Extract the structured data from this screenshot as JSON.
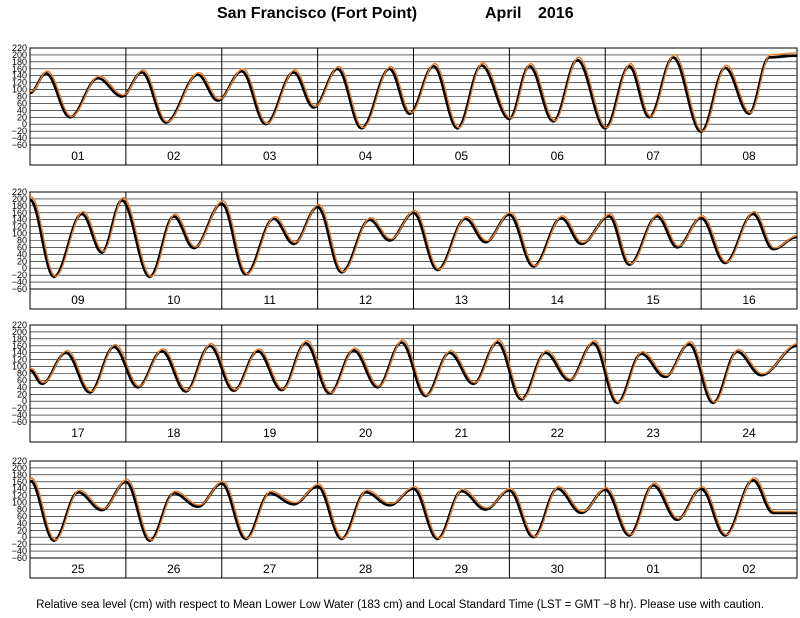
{
  "title": {
    "place": "San Francisco (Fort Point)",
    "month": "April",
    "year": "2016"
  },
  "caption": "Relative sea level (cm) with respect to Mean Lower Low Water (183 cm) and Local Standard Time (LST = GMT −8 hr). Please use with caution.",
  "colors": {
    "observed": "#000000",
    "predicted": "#e87d28",
    "grid": "#000000"
  },
  "chart_data": {
    "type": "line",
    "ylim": [
      -60,
      220
    ],
    "yticks": [
      -60,
      -40,
      -20,
      0,
      20,
      40,
      60,
      80,
      100,
      120,
      140,
      160,
      180,
      200,
      220
    ],
    "grid": true,
    "series": [
      {
        "style": "thick",
        "color": "#000000"
      },
      {
        "style": "thin",
        "color": "#e87d28"
      }
    ],
    "panels": [
      {
        "days": [
          "01",
          "02",
          "03",
          "04",
          "05",
          "06",
          "07",
          "08"
        ]
      },
      {
        "days": [
          "09",
          "10",
          "11",
          "12",
          "13",
          "14",
          "15",
          "16"
        ]
      },
      {
        "days": [
          "17",
          "18",
          "19",
          "20",
          "21",
          "22",
          "23",
          "24"
        ]
      },
      {
        "days": [
          "25",
          "26",
          "27",
          "28",
          "29",
          "30",
          "01",
          "02"
        ]
      }
    ],
    "extrema": [
      [
        0,
        90
      ],
      [
        4,
        147
      ],
      [
        10,
        20
      ],
      [
        17,
        133
      ],
      [
        23,
        80
      ],
      [
        28,
        150
      ],
      [
        34,
        5
      ],
      [
        42,
        143
      ],
      [
        47,
        68
      ],
      [
        53,
        153
      ],
      [
        59,
        0
      ],
      [
        66,
        150
      ],
      [
        71,
        48
      ],
      [
        77,
        160
      ],
      [
        83,
        -12
      ],
      [
        90,
        160
      ],
      [
        95,
        30
      ],
      [
        101,
        168
      ],
      [
        107,
        -12
      ],
      [
        113,
        170
      ],
      [
        120,
        15
      ],
      [
        125,
        168
      ],
      [
        131,
        8
      ],
      [
        137,
        186
      ],
      [
        144,
        -12
      ],
      [
        150,
        168
      ],
      [
        155,
        20
      ],
      [
        161,
        193
      ],
      [
        168,
        -22
      ],
      [
        174,
        163
      ],
      [
        180,
        30
      ],
      [
        185,
        193
      ],
      [
        192,
        198
      ],
      [
        198,
        -25
      ],
      [
        205,
        157
      ],
      [
        210,
        45
      ],
      [
        215,
        196
      ],
      [
        222,
        -25
      ],
      [
        228,
        150
      ],
      [
        233,
        58
      ],
      [
        240,
        187
      ],
      [
        246,
        -18
      ],
      [
        253,
        143
      ],
      [
        258,
        70
      ],
      [
        264,
        177
      ],
      [
        270,
        -12
      ],
      [
        277,
        140
      ],
      [
        282,
        80
      ],
      [
        288,
        160
      ],
      [
        294,
        -5
      ],
      [
        301,
        143
      ],
      [
        306,
        75
      ],
      [
        312,
        155
      ],
      [
        318,
        5
      ],
      [
        325,
        145
      ],
      [
        330,
        70
      ],
      [
        337,
        150
      ],
      [
        342,
        10
      ],
      [
        349,
        150
      ],
      [
        354,
        60
      ],
      [
        360,
        145
      ],
      [
        366,
        15
      ],
      [
        373,
        157
      ],
      [
        378,
        55
      ],
      [
        384,
        90
      ],
      [
        384,
        90
      ],
      [
        387,
        50
      ],
      [
        393,
        140
      ],
      [
        399,
        25
      ],
      [
        405,
        157
      ],
      [
        411,
        40
      ],
      [
        417,
        145
      ],
      [
        423,
        28
      ],
      [
        429,
        160
      ],
      [
        435,
        30
      ],
      [
        441,
        145
      ],
      [
        447,
        32
      ],
      [
        453,
        168
      ],
      [
        459,
        22
      ],
      [
        465,
        147
      ],
      [
        471,
        40
      ],
      [
        477,
        170
      ],
      [
        483,
        15
      ],
      [
        489,
        140
      ],
      [
        495,
        50
      ],
      [
        501,
        170
      ],
      [
        507,
        5
      ],
      [
        513,
        140
      ],
      [
        519,
        60
      ],
      [
        525,
        168
      ],
      [
        531,
        -5
      ],
      [
        537,
        137
      ],
      [
        543,
        70
      ],
      [
        549,
        165
      ],
      [
        555,
        -5
      ],
      [
        561,
        143
      ],
      [
        567,
        75
      ],
      [
        576,
        160
      ],
      [
        576,
        165
      ],
      [
        582,
        -10
      ],
      [
        588,
        130
      ],
      [
        594,
        78
      ],
      [
        600,
        160
      ],
      [
        606,
        -10
      ],
      [
        612,
        127
      ],
      [
        618,
        88
      ],
      [
        624,
        155
      ],
      [
        630,
        -5
      ],
      [
        636,
        127
      ],
      [
        642,
        95
      ],
      [
        648,
        147
      ],
      [
        654,
        -5
      ],
      [
        660,
        130
      ],
      [
        666,
        92
      ],
      [
        672,
        140
      ],
      [
        678,
        -5
      ],
      [
        684,
        133
      ],
      [
        690,
        80
      ],
      [
        696,
        135
      ],
      [
        702,
        0
      ],
      [
        708,
        140
      ],
      [
        714,
        70
      ],
      [
        720,
        137
      ],
      [
        726,
        5
      ],
      [
        732,
        150
      ],
      [
        738,
        50
      ],
      [
        744,
        140
      ],
      [
        750,
        5
      ],
      [
        757,
        165
      ],
      [
        762,
        70
      ],
      [
        768,
        70
      ]
    ]
  }
}
